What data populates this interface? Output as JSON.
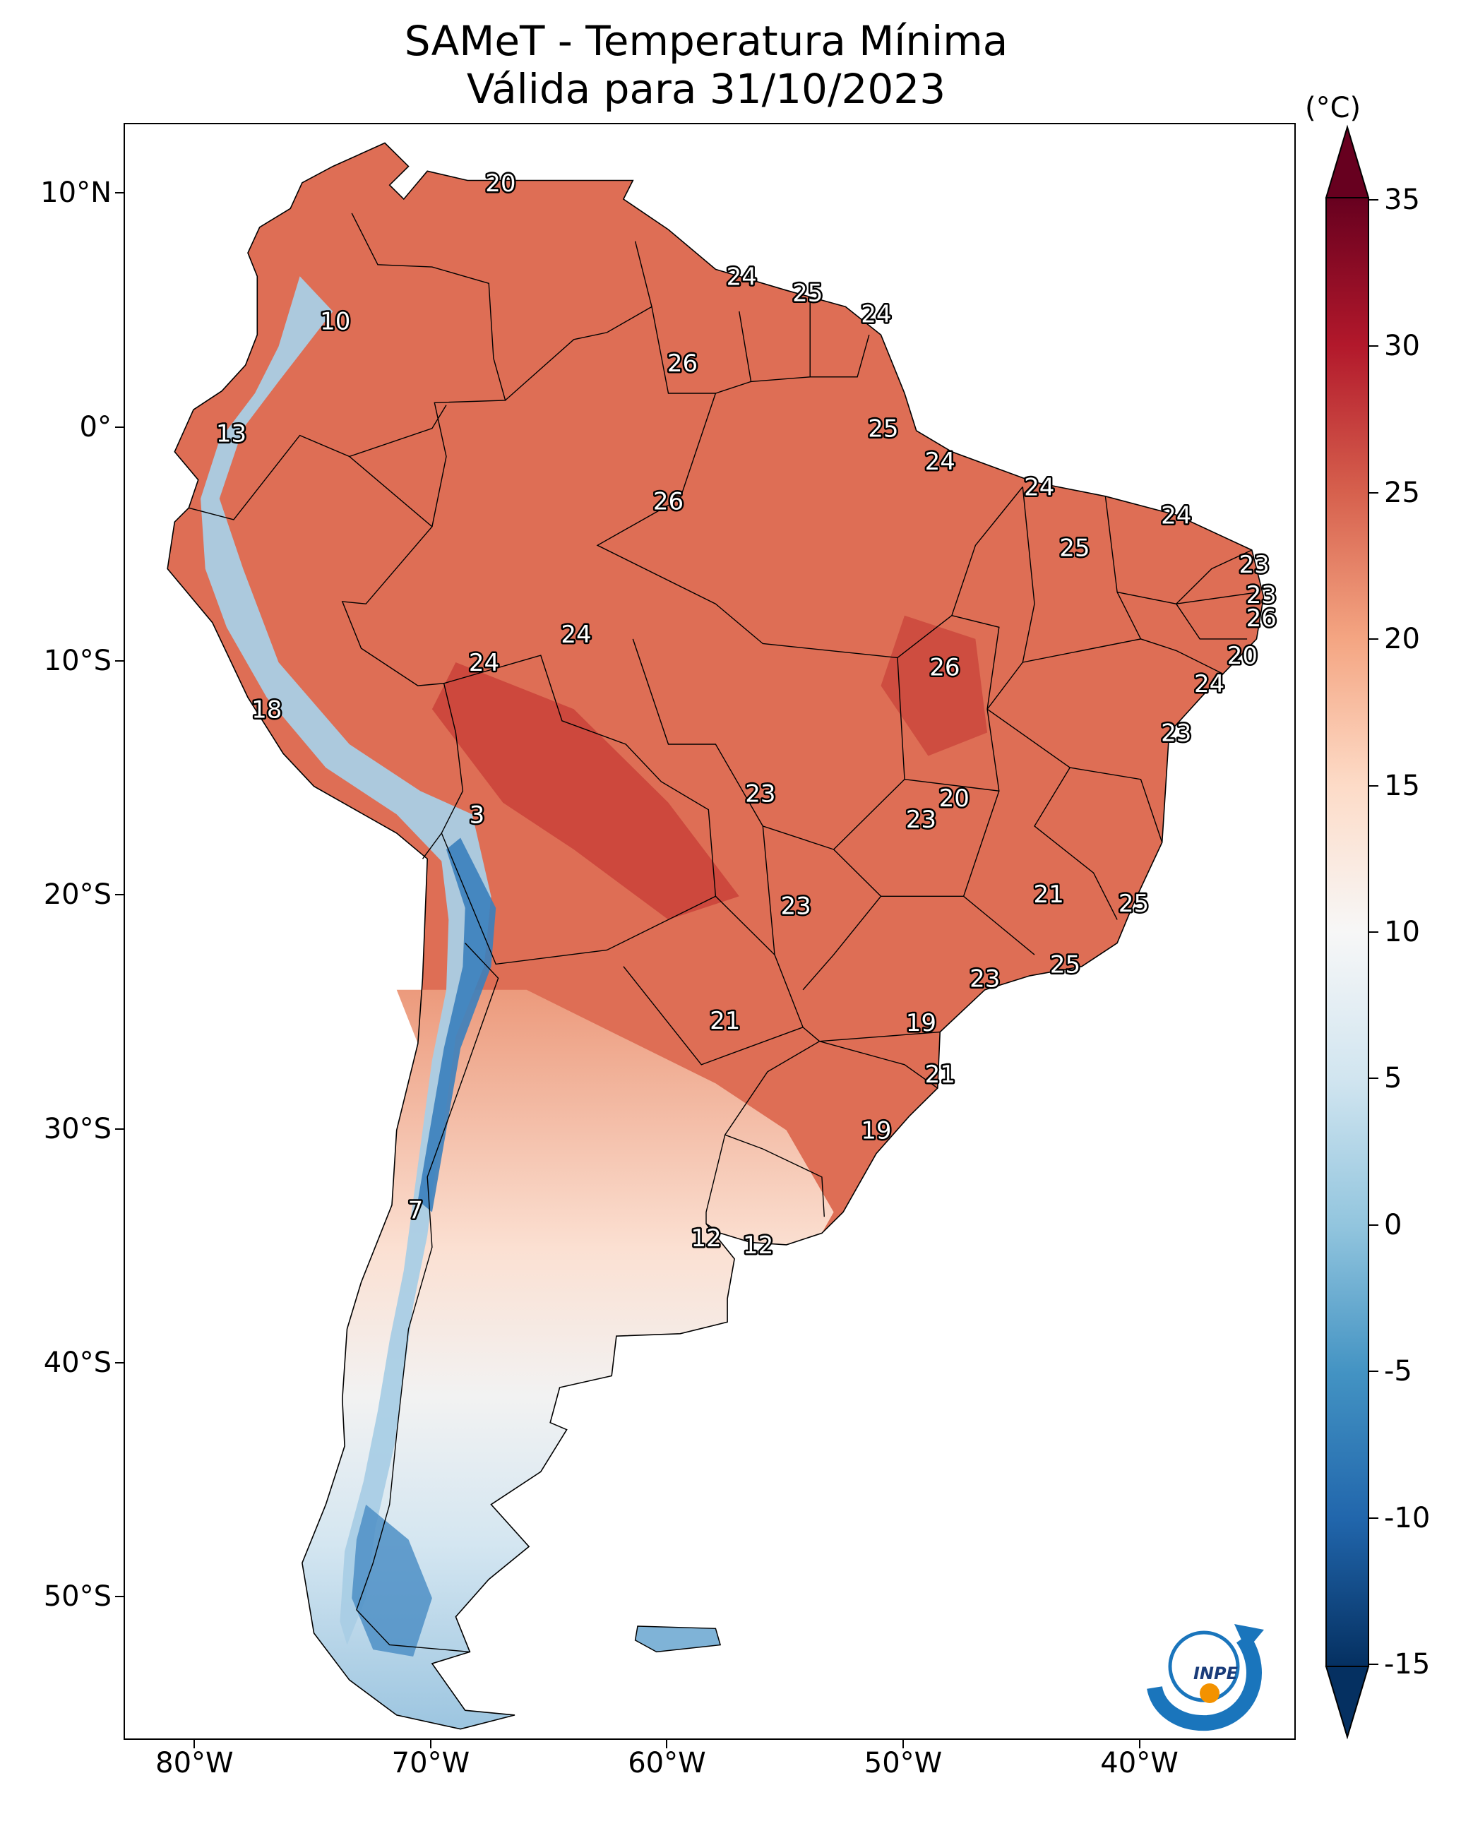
{
  "title": {
    "line1": "SAMeT - Temperatura Mínima",
    "line2": "Válida para 31/10/2023"
  },
  "lat_labels": [
    {
      "text": "10°N",
      "lat": 10
    },
    {
      "text": "0°",
      "lat": 0
    },
    {
      "text": "10°S",
      "lat": -10
    },
    {
      "text": "20°S",
      "lat": -20
    },
    {
      "text": "30°S",
      "lat": -30
    },
    {
      "text": "40°S",
      "lat": -40
    },
    {
      "text": "50°S",
      "lat": -50
    }
  ],
  "lon_labels": [
    {
      "text": "80°W",
      "lon": -80
    },
    {
      "text": "70°W",
      "lon": -70
    },
    {
      "text": "60°W",
      "lon": -60
    },
    {
      "text": "50°W",
      "lon": -50
    },
    {
      "text": "40°W",
      "lon": -40
    }
  ],
  "extent": {
    "lon_min": -83,
    "lon_max": -33.5,
    "lat_min": -56,
    "lat_max": 13
  },
  "colorbar": {
    "unit": "(°C)",
    "min": -15,
    "max": 35,
    "ticks": [
      "35",
      "30",
      "25",
      "20",
      "15",
      "10",
      "5",
      "0",
      "-5",
      "-10",
      "-15"
    ],
    "tick_values": [
      35,
      30,
      25,
      20,
      15,
      10,
      5,
      0,
      -5,
      -10,
      -15
    ],
    "colors": [
      "#053061",
      "#2166ac",
      "#4393c3",
      "#92c5de",
      "#d1e5f0",
      "#f7f7f7",
      "#fddbc7",
      "#f4a582",
      "#d6604d",
      "#b2182b",
      "#67001f"
    ]
  },
  "city_values": [
    {
      "value": "20",
      "lon": -67.1,
      "lat": 10.5
    },
    {
      "value": "10",
      "lon": -74.1,
      "lat": 4.6
    },
    {
      "value": "24",
      "lon": -56.9,
      "lat": 6.5
    },
    {
      "value": "25",
      "lon": -54.1,
      "lat": 5.8
    },
    {
      "value": "24",
      "lon": -51.2,
      "lat": 4.9
    },
    {
      "value": "26",
      "lon": -59.4,
      "lat": 2.8
    },
    {
      "value": "13",
      "lon": -78.5,
      "lat": -0.2
    },
    {
      "value": "25",
      "lon": -50.9,
      "lat": 0.0
    },
    {
      "value": "24",
      "lon": -48.5,
      "lat": -1.4
    },
    {
      "value": "24",
      "lon": -44.3,
      "lat": -2.5
    },
    {
      "value": "26",
      "lon": -60.0,
      "lat": -3.1
    },
    {
      "value": "24",
      "lon": -38.5,
      "lat": -3.7
    },
    {
      "value": "25",
      "lon": -42.8,
      "lat": -5.1
    },
    {
      "value": "23",
      "lon": -35.2,
      "lat": -5.8
    },
    {
      "value": "23",
      "lon": -34.9,
      "lat": -7.1
    },
    {
      "value": "26",
      "lon": -34.9,
      "lat": -8.1
    },
    {
      "value": "24",
      "lon": -63.9,
      "lat": -8.8
    },
    {
      "value": "24",
      "lon": -67.8,
      "lat": -10.0
    },
    {
      "value": "20",
      "lon": -35.7,
      "lat": -9.7
    },
    {
      "value": "26",
      "lon": -48.3,
      "lat": -10.2
    },
    {
      "value": "24",
      "lon": -37.1,
      "lat": -10.9
    },
    {
      "value": "18",
      "lon": -77.0,
      "lat": -12.0
    },
    {
      "value": "23",
      "lon": -38.5,
      "lat": -13.0
    },
    {
      "value": "23",
      "lon": -56.1,
      "lat": -15.6
    },
    {
      "value": "20",
      "lon": -47.9,
      "lat": -15.8
    },
    {
      "value": "3",
      "lon": -68.1,
      "lat": -16.5
    },
    {
      "value": "23",
      "lon": -49.3,
      "lat": -16.7
    },
    {
      "value": "21",
      "lon": -43.9,
      "lat": -19.9
    },
    {
      "value": "23",
      "lon": -54.6,
      "lat": -20.4
    },
    {
      "value": "25",
      "lon": -40.3,
      "lat": -20.3
    },
    {
      "value": "25",
      "lon": -43.2,
      "lat": -22.9
    },
    {
      "value": "23",
      "lon": -46.6,
      "lat": -23.5
    },
    {
      "value": "21",
      "lon": -57.6,
      "lat": -25.3
    },
    {
      "value": "19",
      "lon": -49.3,
      "lat": -25.4
    },
    {
      "value": "21",
      "lon": -48.5,
      "lat": -27.6
    },
    {
      "value": "19",
      "lon": -51.2,
      "lat": -30.0
    },
    {
      "value": "7",
      "lon": -70.7,
      "lat": -33.4
    },
    {
      "value": "12",
      "lon": -58.4,
      "lat": -34.6
    },
    {
      "value": "12",
      "lon": -56.2,
      "lat": -34.9
    }
  ],
  "logo": {
    "text": "INPE"
  }
}
